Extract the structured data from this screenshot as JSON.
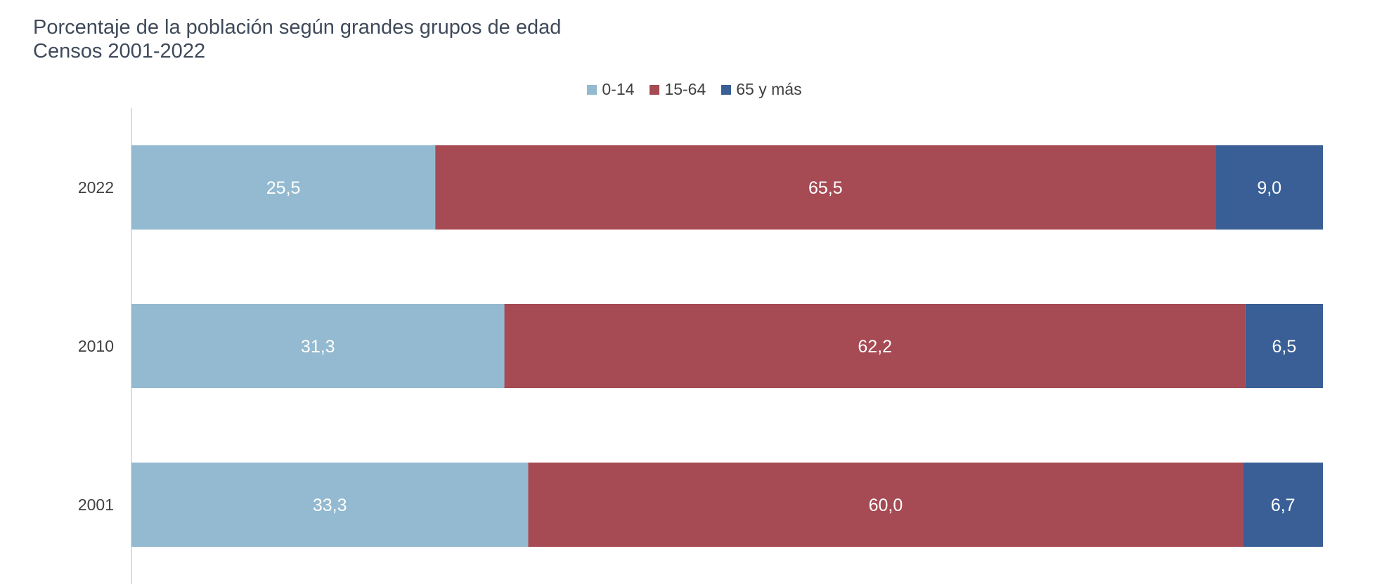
{
  "chart_data": {
    "type": "bar",
    "orientation": "horizontal",
    "stacked": true,
    "title": "Porcentaje de la población según grandes grupos de edad",
    "subtitle": "Censos 2001-2022",
    "categories": [
      "2022",
      "2010",
      "2001"
    ],
    "series": [
      {
        "name": "0-14",
        "color": "#93bad0",
        "values": [
          25.5,
          31.3,
          33.3
        ],
        "labels": [
          "25,5",
          "31,3",
          "33,3"
        ]
      },
      {
        "name": "15-64",
        "color": "#a64a54",
        "values": [
          65.5,
          62.2,
          60.0
        ],
        "labels": [
          "65,5",
          "62,2",
          "60,0"
        ]
      },
      {
        "name": "65 y más",
        "color": "#395f96",
        "values": [
          9.0,
          6.5,
          6.7
        ],
        "labels": [
          "9,0",
          "6,5",
          "6,7"
        ]
      }
    ],
    "xlim": [
      0,
      100
    ],
    "grid": false,
    "legend": "top-center",
    "xlabel": "",
    "ylabel": ""
  }
}
